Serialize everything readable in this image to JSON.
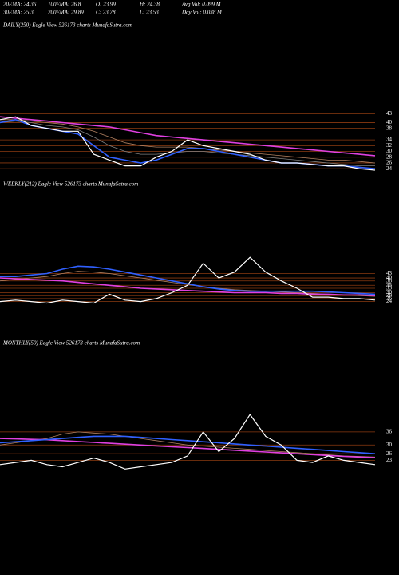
{
  "header": {
    "row1": [
      "20EMA: 24.36",
      "100EMA: 26.8",
      "O: 23.99",
      "H: 24.38",
      "Avg Vol: 0.099  M"
    ],
    "row2": [
      "30EMA: 25.3",
      "200EMA: 29.89",
      "C: 23.78",
      "L: 23.53",
      "Day Vol: 0.038  M"
    ]
  },
  "chart_data": [
    {
      "type": "line",
      "title": "DAILY(250) Eagle  View  526173 charts MunafaSutra.com",
      "ylim": [
        21,
        46.5
      ],
      "yticks": [
        43,
        40,
        38,
        34,
        32,
        30,
        28,
        26,
        24
      ],
      "grid": true,
      "grid_color": "#8b3a10",
      "series": [
        {
          "color": "#b08060",
          "values": [
            41,
            41,
            40.5,
            40,
            39.5,
            38.5,
            37,
            35,
            33,
            32,
            31.5,
            31.5,
            31.5,
            31,
            30.5,
            30,
            29.5,
            29,
            28.5,
            28,
            27.5,
            27,
            27,
            26.5,
            26
          ]
        },
        {
          "color": "#808080",
          "values": [
            40,
            40.5,
            40,
            39,
            38.5,
            37.5,
            35,
            32,
            30,
            29,
            29,
            29.5,
            30,
            30,
            29.5,
            29,
            28.5,
            28,
            27.5,
            27,
            26.5,
            26,
            25.5,
            25,
            25
          ]
        },
        {
          "color": "#e040e0",
          "values": [
            42,
            41.5,
            41,
            40.5,
            40,
            39.5,
            39,
            38.5,
            37.5,
            36.5,
            35.5,
            35,
            34.5,
            34,
            33.5,
            33,
            32.5,
            32,
            31.5,
            31,
            30.5,
            30,
            29.5,
            29,
            28.5
          ]
        },
        {
          "color": "#3060ff",
          "values": [
            40,
            41,
            39,
            38,
            37,
            36,
            32,
            28,
            27,
            26,
            27,
            29,
            31,
            31,
            30,
            29,
            28,
            27,
            26,
            26,
            25.5,
            25,
            25,
            24.5,
            24
          ]
        },
        {
          "color": "#ffffff",
          "values": [
            41,
            42,
            39,
            38,
            37,
            37,
            29,
            27,
            25,
            25,
            28,
            30,
            34,
            32,
            31,
            30,
            29,
            27,
            26,
            26,
            25.5,
            25,
            25,
            24,
            23.5
          ]
        }
      ]
    },
    {
      "type": "line",
      "title": "WEEKLY(212) Eagle  View  526173 charts MunafaSutra.com",
      "ylim": [
        20,
        66
      ],
      "yticks": [
        43,
        40,
        38,
        35,
        33,
        30,
        28,
        26,
        24
      ],
      "grid": true,
      "grid_color": "#8b3a10",
      "series": [
        {
          "color": "#b08060",
          "values": [
            38,
            39,
            40,
            41,
            43,
            44.5,
            44,
            43,
            41.5,
            40,
            38.5,
            37,
            35.5,
            34,
            33,
            32,
            31.5,
            31,
            30.5,
            30,
            29.5,
            29,
            28.5,
            28,
            27.5
          ]
        },
        {
          "color": "#e040e0",
          "values": [
            40,
            39.5,
            39,
            38.5,
            38,
            37,
            36,
            35,
            34,
            33,
            32.5,
            32,
            31.5,
            31,
            30.5,
            30,
            30,
            30,
            29.5,
            29.5,
            29,
            29,
            28.5,
            28.5,
            28
          ]
        },
        {
          "color": "#3060ff",
          "values": [
            41,
            41,
            42,
            43,
            46,
            48,
            47.5,
            46,
            44,
            42,
            40,
            38,
            36,
            34,
            32.5,
            31.5,
            31,
            31,
            31,
            31,
            31,
            30.5,
            30,
            29.5,
            29
          ]
        },
        {
          "color": "#ffffff",
          "values": [
            24,
            25,
            24,
            23,
            25,
            24,
            23,
            29,
            25,
            24,
            26,
            30,
            35,
            50,
            40,
            44,
            54,
            44,
            38,
            33,
            27,
            27,
            26,
            26,
            25
          ]
        }
      ]
    },
    {
      "type": "line",
      "title": "MONTHLY(50) Eagle  View  526173 charts MunafaSutra.com",
      "ylim": [
        18,
        51
      ],
      "yticks": [
        36,
        30,
        26,
        23
      ],
      "grid": true,
      "grid_color": "#8b3a10",
      "series": [
        {
          "color": "#b08060",
          "values": [
            30,
            31,
            32,
            33,
            35,
            36,
            35.5,
            35,
            34,
            33,
            32,
            31,
            30,
            29.5,
            29,
            28.5,
            28,
            27.5,
            27,
            26.5,
            26,
            25.5,
            25,
            24.8,
            24.5
          ]
        },
        {
          "color": "#e040e0",
          "values": [
            33,
            32.8,
            32.6,
            32.4,
            32,
            31.6,
            31.2,
            30.8,
            30.4,
            30,
            29.6,
            29.2,
            28.8,
            28.4,
            28,
            27.6,
            27.2,
            26.8,
            26.4,
            26,
            25.6,
            25.2,
            24.8,
            24.5,
            24.2
          ]
        },
        {
          "color": "#3060ff",
          "values": [
            31,
            31.5,
            32,
            32.5,
            33,
            33.5,
            34,
            34,
            34,
            33.5,
            33,
            32.5,
            32,
            31.5,
            31,
            30.5,
            30,
            29.5,
            29,
            28.5,
            28,
            27.5,
            27,
            26.5,
            26
          ]
        },
        {
          "color": "#ffffff",
          "values": [
            21,
            22,
            23,
            21,
            20,
            22,
            24,
            22,
            19,
            20,
            21,
            22,
            25,
            36,
            27,
            33,
            44,
            34,
            30,
            23,
            22,
            25,
            23,
            22,
            21
          ]
        }
      ]
    }
  ]
}
